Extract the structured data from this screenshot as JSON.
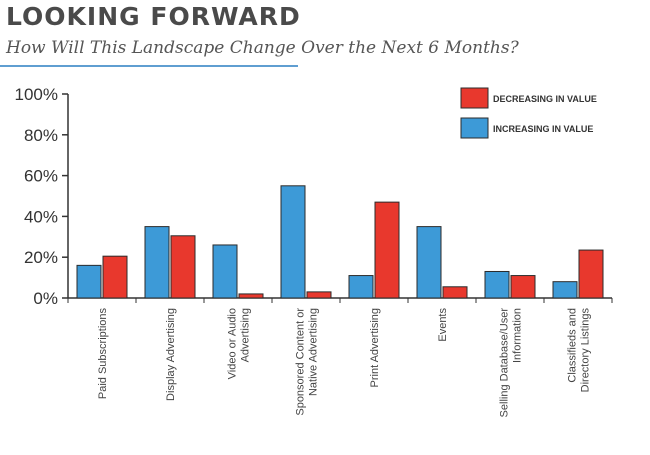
{
  "header": {
    "title": "LOOKING FORWARD",
    "subtitle": "How Will This Landscape Change Over the Next 6 Months?"
  },
  "colors": {
    "increasing": "#3d9ad7",
    "decreasing": "#e8382d",
    "bar_border": "#2b2b2b",
    "axis": "#333333",
    "title_rule": "#5f9ed1"
  },
  "chart_data": {
    "type": "bar",
    "title": "LOOKING FORWARD",
    "subtitle": "How Will This Landscape Change Over the Next 6 Months?",
    "categories": [
      [
        "Paid Subscriptions"
      ],
      [
        "Display Advertising"
      ],
      [
        "Video or Audio",
        "Advertising"
      ],
      [
        "Sponsored Content or",
        "Native  Advertising"
      ],
      [
        "Print Advertising"
      ],
      [
        "Events"
      ],
      [
        "Selling Database/User",
        "Information"
      ],
      [
        "Classifieds and",
        "Directory Listings"
      ]
    ],
    "series": [
      {
        "name": "INCREASING IN VALUE",
        "color": "#3d9ad7",
        "values": [
          16,
          35,
          26,
          55,
          11,
          35,
          13,
          8
        ]
      },
      {
        "name": "DECREASING IN VALUE",
        "color": "#e8382d",
        "values": [
          20.5,
          30.5,
          2,
          3,
          47,
          5.5,
          11,
          23.5
        ]
      }
    ],
    "y_ticks": [
      "0%",
      "20%",
      "40%",
      "60%",
      "80%",
      "100%"
    ],
    "ylim": [
      0,
      100
    ],
    "legend": {
      "position": "top-right",
      "order": [
        "DECREASING IN VALUE",
        "INCREASING IN VALUE"
      ]
    },
    "grid": false
  }
}
